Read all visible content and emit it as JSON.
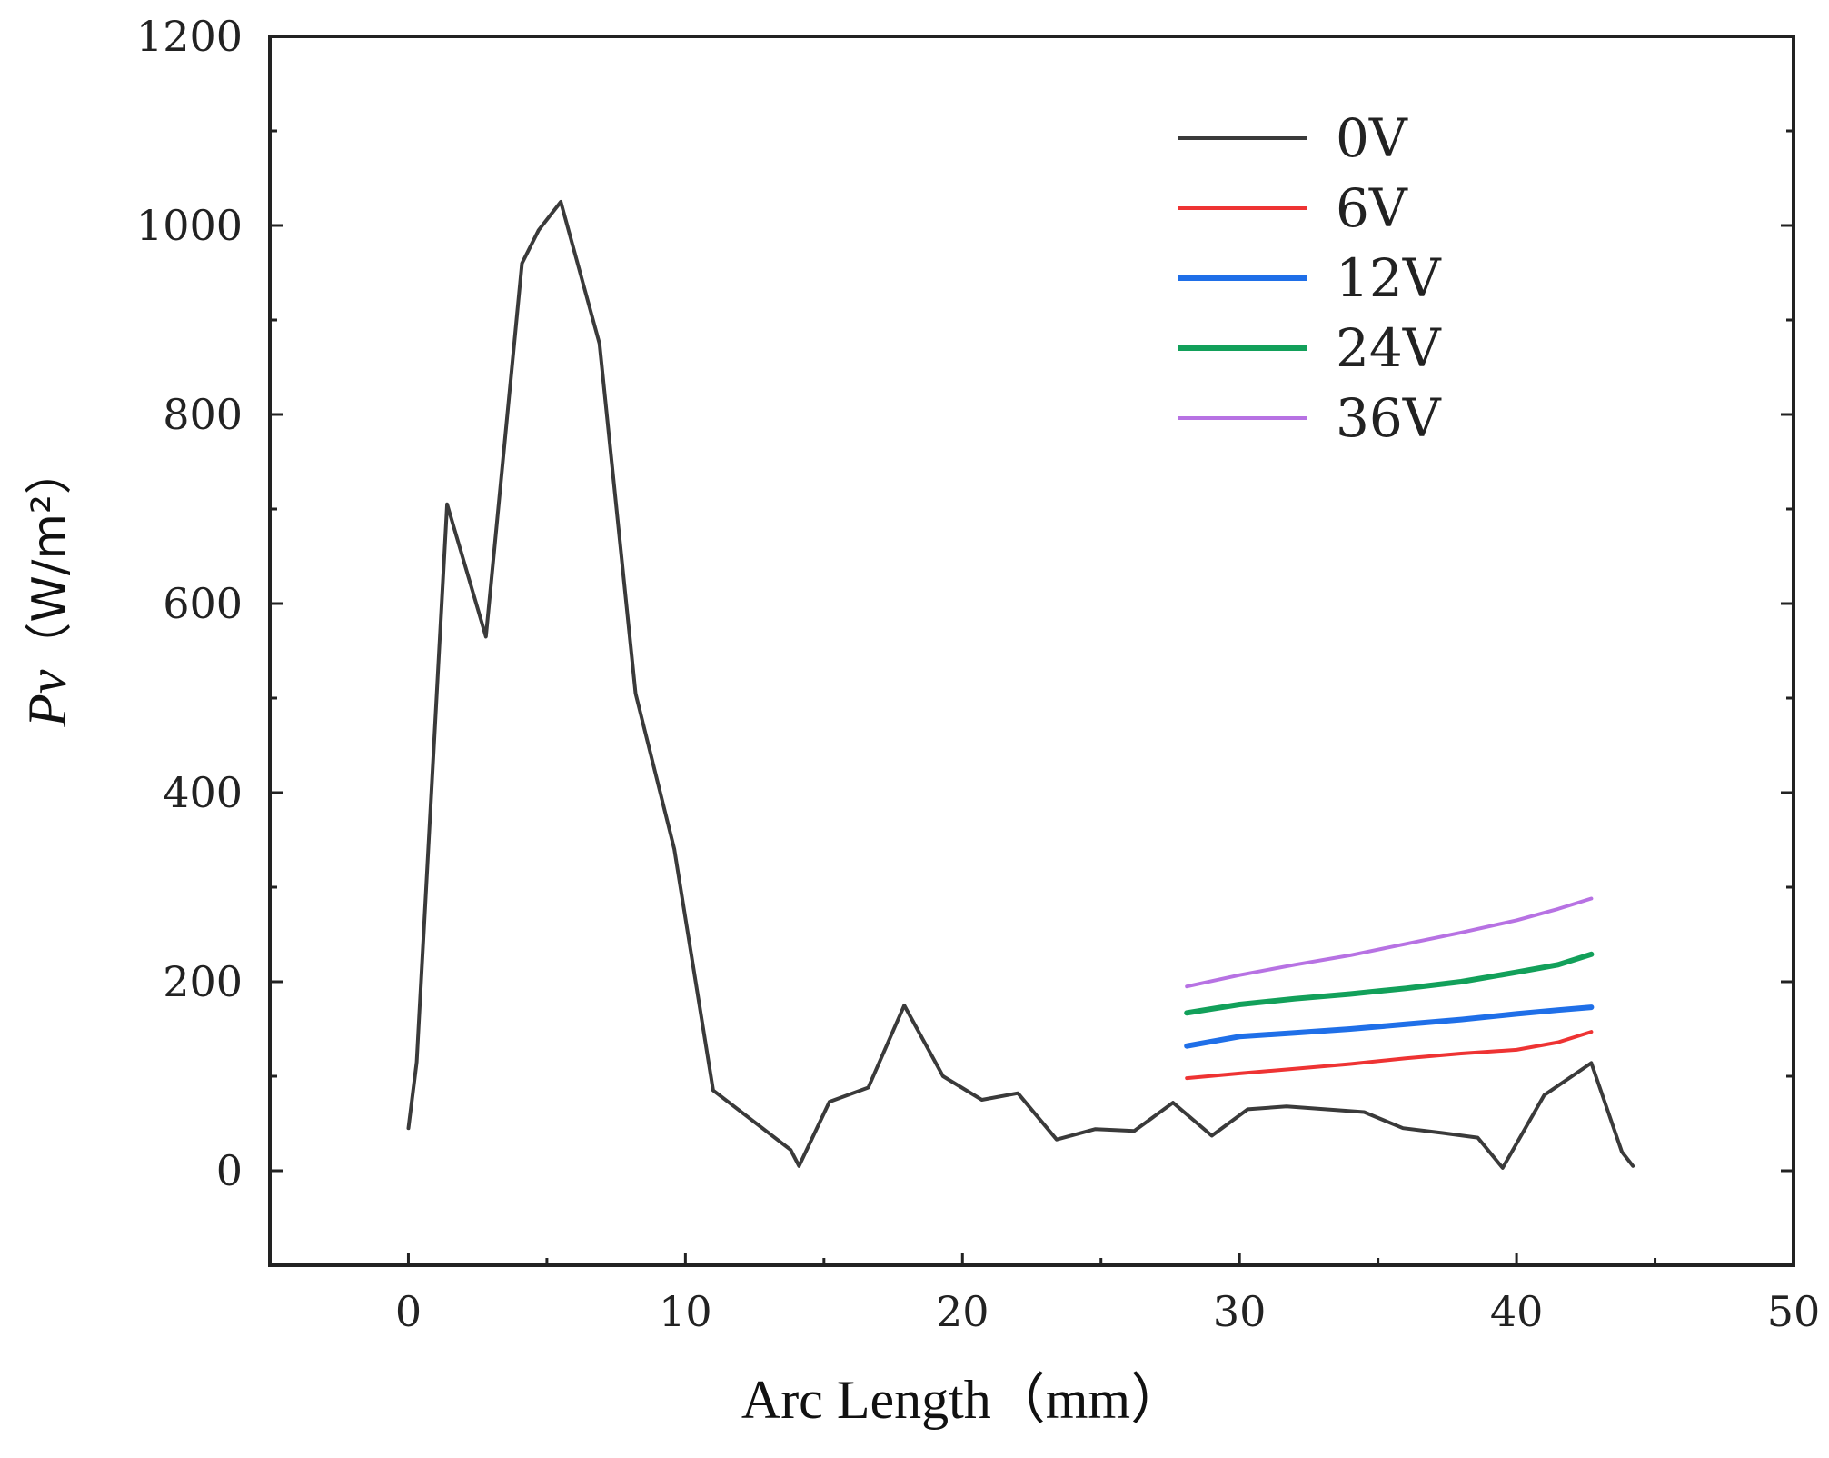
{
  "chart_data": {
    "type": "line",
    "title": "",
    "xlabel": "Arc Length（mm）",
    "ylabel_symbol": "Pv",
    "ylabel_unit": "（W/m²）",
    "xlim": [
      -5,
      50
    ],
    "ylim": [
      -100,
      1200
    ],
    "xticks": [
      "0",
      "10",
      "20",
      "30",
      "40",
      "50"
    ],
    "xtick_values": [
      0,
      10,
      20,
      30,
      40,
      50
    ],
    "yticks": [
      "0",
      "200",
      "400",
      "600",
      "800",
      "1000",
      "1200"
    ],
    "ytick_values": [
      0,
      200,
      400,
      600,
      800,
      1000,
      1200
    ],
    "legend_position": "top-right",
    "series": [
      {
        "name": "0V",
        "color": "#3a3a3a",
        "x": [
          0,
          0.3,
          1.4,
          2.8,
          4.1,
          4.7,
          5.5,
          6.9,
          8.2,
          9.6,
          11,
          13.8,
          14.1,
          15.2,
          16.6,
          17.9,
          19.3,
          20.7,
          22,
          23.4,
          24.8,
          26.2,
          27.6,
          29,
          30.3,
          31.7,
          33.1,
          34.5,
          35.9,
          37.3,
          38.6,
          39.5,
          41,
          42.7,
          43.8,
          44.2
        ],
        "y": [
          45,
          115,
          705,
          565,
          960,
          995,
          1025,
          875,
          505,
          340,
          85,
          22,
          5,
          73,
          88,
          175,
          100,
          75,
          82,
          33,
          44,
          42,
          72,
          37,
          65,
          68,
          65,
          62,
          45,
          40,
          35,
          3,
          80,
          114,
          20,
          5
        ]
      },
      {
        "name": "6V",
        "color": "#ee3333",
        "x": [
          28.1,
          30,
          32,
          34,
          36,
          38,
          40,
          41.5,
          42.7
        ],
        "y": [
          98,
          103,
          108,
          113,
          119,
          124,
          128,
          136,
          147
        ]
      },
      {
        "name": "12V",
        "color": "#1f6fe8",
        "x": [
          28.1,
          30,
          32,
          34,
          36,
          38,
          40,
          41.5,
          42.7
        ],
        "y": [
          132,
          142,
          146,
          150,
          155,
          160,
          166,
          170,
          173
        ]
      },
      {
        "name": "24V",
        "color": "#12a05a",
        "x": [
          28.1,
          30,
          32,
          34,
          36,
          38,
          40,
          41.5,
          42.7
        ],
        "y": [
          167,
          176,
          182,
          187,
          193,
          200,
          210,
          218,
          229
        ]
      },
      {
        "name": "36V",
        "color": "#b772e3",
        "x": [
          28.1,
          30,
          32,
          34,
          36,
          38,
          40,
          41.5,
          42.7
        ],
        "y": [
          195,
          207,
          218,
          228,
          240,
          252,
          265,
          277,
          288
        ]
      }
    ]
  }
}
